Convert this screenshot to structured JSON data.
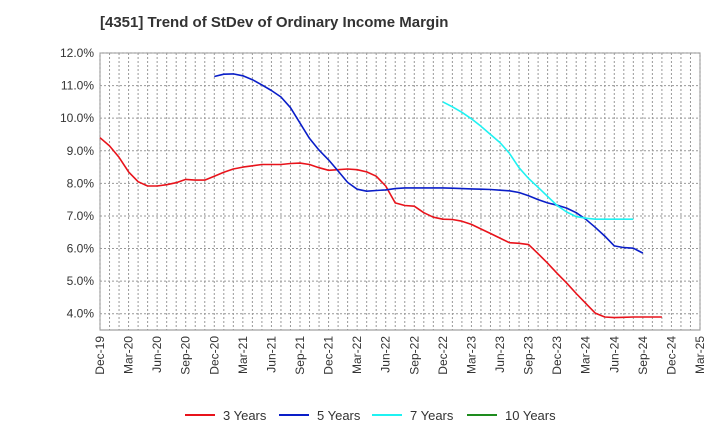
{
  "chart_data": {
    "type": "line",
    "title": "[4351]  Trend of StDev of Ordinary Income Margin",
    "xlabel": "",
    "ylabel": "",
    "ylim": [
      3.5,
      12.0
    ],
    "y_ticks": [
      4.0,
      5.0,
      6.0,
      7.0,
      8.0,
      9.0,
      10.0,
      11.0,
      12.0
    ],
    "y_tick_labels": [
      "4.0%",
      "5.0%",
      "6.0%",
      "7.0%",
      "8.0%",
      "9.0%",
      "10.0%",
      "11.0%",
      "12.0%"
    ],
    "x_tick_labels": [
      "Dec-19",
      "Mar-20",
      "Jun-20",
      "Sep-20",
      "Dec-20",
      "Mar-21",
      "Jun-21",
      "Sep-21",
      "Dec-21",
      "Mar-22",
      "Jun-22",
      "Sep-22",
      "Dec-22",
      "Mar-23",
      "Jun-23",
      "Sep-23",
      "Dec-23",
      "Mar-24",
      "Jun-24",
      "Sep-24",
      "Dec-24",
      "Mar-25"
    ],
    "x_unit": "months since Dec-19",
    "grid": true,
    "legend_position": "bottom",
    "series": [
      {
        "name": "3 Years",
        "color": "#e8131b",
        "x": [
          0,
          1,
          2,
          3,
          4,
          5,
          6,
          7,
          8,
          9,
          10,
          11,
          12,
          13,
          14,
          15,
          16,
          17,
          18,
          19,
          20,
          21,
          22,
          23,
          24,
          25,
          26,
          27,
          28,
          29,
          30,
          31,
          32,
          33,
          34,
          35,
          36,
          37,
          38,
          39,
          40,
          41,
          42,
          43,
          44,
          45,
          46,
          47,
          48,
          49,
          50,
          51,
          52,
          53,
          54,
          55,
          56,
          57,
          58,
          59,
          60
        ],
        "values": [
          9.4,
          9.15,
          8.8,
          8.35,
          8.05,
          7.92,
          7.92,
          7.96,
          8.02,
          8.12,
          8.1,
          8.1,
          8.22,
          8.34,
          8.44,
          8.5,
          8.54,
          8.58,
          8.58,
          8.58,
          8.61,
          8.62,
          8.58,
          8.48,
          8.4,
          8.42,
          8.44,
          8.42,
          8.35,
          8.22,
          7.92,
          7.4,
          7.32,
          7.3,
          7.1,
          6.96,
          6.9,
          6.89,
          6.84,
          6.74,
          6.6,
          6.46,
          6.32,
          6.18,
          6.16,
          6.12,
          5.84,
          5.55,
          5.24,
          4.94,
          4.62,
          4.32,
          4.02,
          3.9,
          3.88,
          3.89,
          3.9,
          3.9,
          3.9,
          3.9,
          null
        ]
      },
      {
        "name": "5 Years",
        "color": "#0a1ec8",
        "x": [
          12,
          13,
          14,
          15,
          16,
          17,
          18,
          19,
          20,
          21,
          22,
          23,
          24,
          25,
          26,
          27,
          28,
          29,
          30,
          31,
          32,
          33,
          34,
          35,
          36,
          37,
          38,
          39,
          40,
          41,
          42,
          43,
          44,
          45,
          46,
          47,
          48,
          49,
          50,
          51,
          52,
          53,
          54,
          55,
          56,
          57,
          58,
          59,
          60
        ],
        "values": [
          11.28,
          11.35,
          11.36,
          11.3,
          11.18,
          11.02,
          10.85,
          10.65,
          10.32,
          9.85,
          9.38,
          9.02,
          8.72,
          8.38,
          8.03,
          7.82,
          7.76,
          7.78,
          7.8,
          7.84,
          7.86,
          7.86,
          7.86,
          7.86,
          7.86,
          7.85,
          7.84,
          7.83,
          7.82,
          7.81,
          7.79,
          7.77,
          7.72,
          7.62,
          7.5,
          7.4,
          7.33,
          7.24,
          7.1,
          6.9,
          6.65,
          6.38,
          6.08,
          6.03,
          6.01,
          5.86,
          null,
          null,
          null
        ]
      },
      {
        "name": "7 Years",
        "color": "#1ff2f2",
        "x": [
          36,
          37,
          38,
          39,
          40,
          41,
          42,
          43,
          44,
          45,
          46,
          47,
          48,
          49,
          50,
          51,
          52,
          53,
          54,
          55,
          56,
          57,
          58,
          59,
          60
        ],
        "values": [
          10.5,
          10.35,
          10.18,
          9.98,
          9.75,
          9.5,
          9.25,
          8.92,
          8.48,
          8.15,
          7.88,
          7.6,
          7.32,
          7.12,
          6.98,
          6.93,
          6.9,
          6.9,
          6.9,
          6.9,
          6.9,
          null,
          null,
          null,
          null
        ]
      },
      {
        "name": "10 Years",
        "color": "#1e8c1e",
        "x": [],
        "values": []
      }
    ]
  }
}
